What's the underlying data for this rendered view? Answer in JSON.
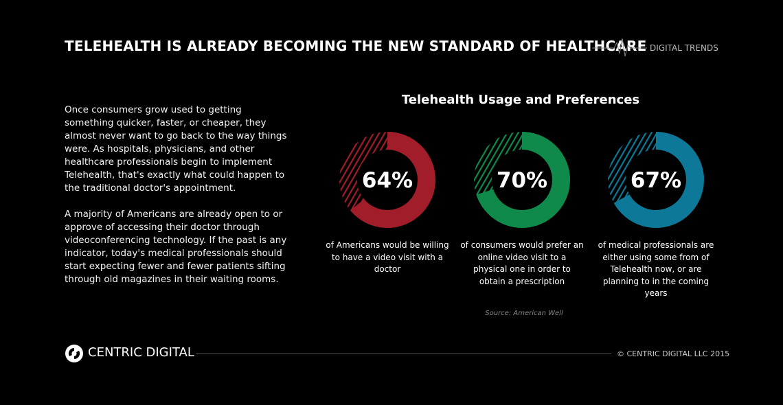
{
  "header": {
    "title": "TELEHEALTH IS ALREADY BECOMING THE NEW STANDARD OF HEALTHCARE",
    "tag": "DIGITAL TRENDS"
  },
  "body": {
    "paragraphs": [
      "Once consumers grow used to getting something quicker, faster, or cheaper, they almost never want to go back to the way things were. As hospitals, physicians, and other healthcare professionals begin to implement Telehealth, that's exactly what could happen to the traditional doctor's appointment.",
      "A majority of Americans are already open to or approve of accessing their doctor through videoconferencing technology. If the past is any indicator, today's medical professionals should start expecting fewer and fewer patients sifting through old magazines in their waiting rooms."
    ]
  },
  "chart_data": {
    "type": "donut",
    "title": "Telehealth Usage and Preferences",
    "categories": [
      "of Americans would be willing to have a video visit with a doctor",
      "of consumers would prefer an online video visit to a physical one in order to obtain a prescription",
      "of medical professionals are either using some from of Telehealth now, or are planning to in the coming years"
    ],
    "values": [
      64,
      70,
      67
    ],
    "value_labels": [
      "64%",
      "70%",
      "67%"
    ],
    "colors": [
      "#a11d29",
      "#0f8a4b",
      "#0d7898"
    ],
    "source": "Source: American Well"
  },
  "footer": {
    "brand": "CENTRIC DIGITAL",
    "copyright": "© CENTRIC DIGITAL LLC 2015"
  }
}
